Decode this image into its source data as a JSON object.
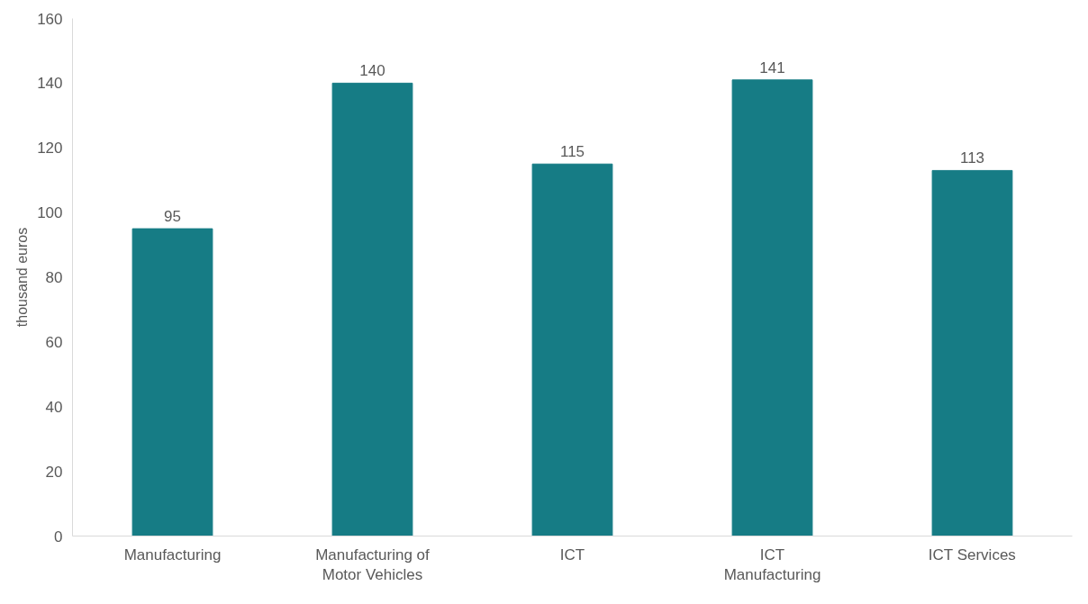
{
  "chart_data": {
    "type": "bar",
    "ylabel": "thousand euros",
    "categories": [
      "Manufacturing",
      "Manufacturing of Motor Vehicles",
      "ICT",
      "ICT Manufacturing",
      "ICT Services"
    ],
    "values": [
      95,
      140,
      115,
      141,
      113
    ],
    "color": "#167c85",
    "ylim": [
      0,
      160
    ],
    "yticks": [
      0,
      20,
      40,
      60,
      80,
      100,
      120,
      140,
      160
    ],
    "grid": false,
    "data_labels": true
  }
}
